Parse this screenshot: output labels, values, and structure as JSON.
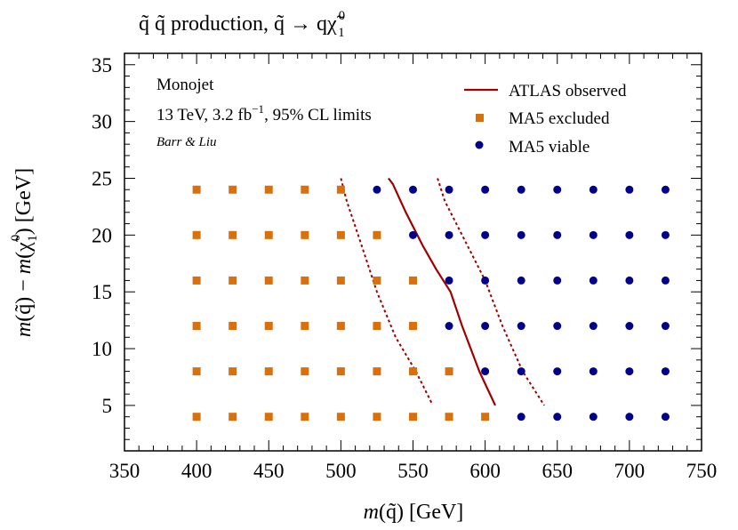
{
  "chart_data": {
    "type": "scatter",
    "title": "q̃ q̃ production, q̃ → qχ̃₁⁰",
    "title_parts": {
      "main": "q̃ q̃ production, q̃ → qχ̃",
      "sup": "0",
      "sub": "1"
    },
    "xlabel": {
      "italic": "m",
      "rest": "(q̃) [GeV]"
    },
    "ylabel": {
      "italic1": "m",
      "part1": "(q̃) − ",
      "italic2": "m",
      "part2": "(χ̃",
      "sup": "0",
      "sub": "1",
      "part3": ") [GeV]"
    },
    "xlim": [
      350,
      750
    ],
    "ylim": [
      1,
      36
    ],
    "xticks": [
      350,
      400,
      450,
      500,
      550,
      600,
      650,
      700,
      750
    ],
    "yticks": [
      5,
      10,
      15,
      20,
      25,
      30,
      35
    ],
    "annotations": {
      "line1": "Monojet",
      "line2_pre": "13 TeV, 3.2 fb",
      "line2_sup": "−1",
      "line2_post": ", 95% CL limits",
      "author": "Barr & Liu"
    },
    "legend": {
      "position": "top-right",
      "entries": [
        {
          "label": "ATLAS observed",
          "kind": "line"
        },
        {
          "label": "MA5 excluded",
          "kind": "square"
        },
        {
          "label": "MA5 viable",
          "kind": "circle"
        }
      ]
    },
    "series": [
      {
        "name": "MA5 excluded",
        "marker": "square",
        "color": "#d9700c",
        "points": [
          [
            400,
            4
          ],
          [
            425,
            4
          ],
          [
            450,
            4
          ],
          [
            475,
            4
          ],
          [
            500,
            4
          ],
          [
            525,
            4
          ],
          [
            550,
            4
          ],
          [
            575,
            4
          ],
          [
            600,
            4
          ],
          [
            400,
            8
          ],
          [
            425,
            8
          ],
          [
            450,
            8
          ],
          [
            475,
            8
          ],
          [
            500,
            8
          ],
          [
            525,
            8
          ],
          [
            550,
            8
          ],
          [
            575,
            8
          ],
          [
            400,
            12
          ],
          [
            425,
            12
          ],
          [
            450,
            12
          ],
          [
            475,
            12
          ],
          [
            500,
            12
          ],
          [
            525,
            12
          ],
          [
            550,
            12
          ],
          [
            400,
            16
          ],
          [
            425,
            16
          ],
          [
            450,
            16
          ],
          [
            475,
            16
          ],
          [
            500,
            16
          ],
          [
            525,
            16
          ],
          [
            550,
            16
          ],
          [
            400,
            20
          ],
          [
            425,
            20
          ],
          [
            450,
            20
          ],
          [
            475,
            20
          ],
          [
            500,
            20
          ],
          [
            525,
            20
          ],
          [
            400,
            24
          ],
          [
            425,
            24
          ],
          [
            450,
            24
          ],
          [
            475,
            24
          ],
          [
            500,
            24
          ]
        ]
      },
      {
        "name": "MA5 viable",
        "marker": "circle",
        "color": "#00008b",
        "points": [
          [
            625,
            4
          ],
          [
            650,
            4
          ],
          [
            675,
            4
          ],
          [
            700,
            4
          ],
          [
            725,
            4
          ],
          [
            600,
            8
          ],
          [
            625,
            8
          ],
          [
            650,
            8
          ],
          [
            675,
            8
          ],
          [
            700,
            8
          ],
          [
            725,
            8
          ],
          [
            575,
            12
          ],
          [
            600,
            12
          ],
          [
            625,
            12
          ],
          [
            650,
            12
          ],
          [
            675,
            12
          ],
          [
            700,
            12
          ],
          [
            725,
            12
          ],
          [
            575,
            16
          ],
          [
            600,
            16
          ],
          [
            625,
            16
          ],
          [
            650,
            16
          ],
          [
            675,
            16
          ],
          [
            700,
            16
          ],
          [
            725,
            16
          ],
          [
            550,
            20
          ],
          [
            575,
            20
          ],
          [
            600,
            20
          ],
          [
            625,
            20
          ],
          [
            650,
            20
          ],
          [
            675,
            20
          ],
          [
            700,
            20
          ],
          [
            725,
            20
          ],
          [
            525,
            24
          ],
          [
            550,
            24
          ],
          [
            575,
            24
          ],
          [
            600,
            24
          ],
          [
            625,
            24
          ],
          [
            650,
            24
          ],
          [
            675,
            24
          ],
          [
            700,
            24
          ],
          [
            725,
            24
          ]
        ]
      },
      {
        "name": "ATLAS observed",
        "kind": "line",
        "style": "solid",
        "color": "#a00000",
        "points": [
          [
            533,
            25
          ],
          [
            536,
            24.5
          ],
          [
            545,
            22
          ],
          [
            557,
            19
          ],
          [
            566,
            17
          ],
          [
            576,
            15
          ],
          [
            584,
            12
          ],
          [
            596,
            8
          ],
          [
            607,
            5
          ]
        ]
      },
      {
        "name": "ATLAS observed band (lower)",
        "kind": "line",
        "style": "dashed",
        "color": "#a00000",
        "points": [
          [
            500,
            25
          ],
          [
            504,
            23
          ],
          [
            512,
            20
          ],
          [
            525,
            15
          ],
          [
            538,
            11
          ],
          [
            552,
            8
          ],
          [
            563,
            5.2
          ]
        ]
      },
      {
        "name": "ATLAS observed band (upper)",
        "kind": "line",
        "style": "dashed",
        "color": "#a00000",
        "points": [
          [
            567,
            25
          ],
          [
            572,
            23
          ],
          [
            584,
            20
          ],
          [
            600,
            16
          ],
          [
            612,
            12
          ],
          [
            626,
            8
          ],
          [
            641,
            5
          ]
        ]
      }
    ]
  }
}
